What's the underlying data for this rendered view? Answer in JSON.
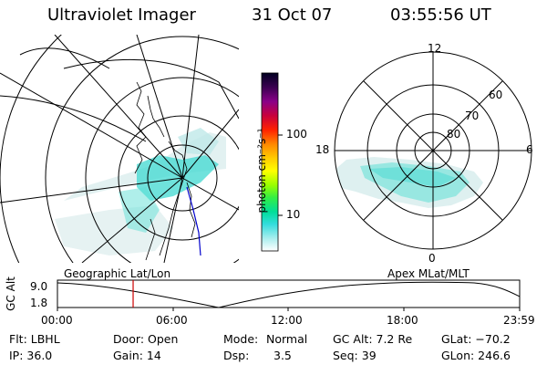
{
  "header": {
    "instrument": "Ultraviolet Imager",
    "date": "31 Oct 07",
    "time": "03:55:56 UT"
  },
  "colorbar": {
    "unit_label": "photon cm⁻²s⁻¹",
    "ticks": [
      {
        "label": "100",
        "value": 100
      },
      {
        "label": "10",
        "value": 10
      }
    ],
    "scale": "log",
    "colors": [
      "#000000",
      "#3a0050",
      "#7a0090",
      "#b0007a",
      "#e00030",
      "#ff3300",
      "#ff8800",
      "#ffbb00",
      "#ffff00",
      "#aaff00",
      "#44ee44",
      "#00dd99",
      "#33dddd",
      "#aaeeee",
      "#ffffff"
    ]
  },
  "polar_plot": {
    "mlt_labels": [
      {
        "label": "12",
        "mlt": 12
      },
      {
        "label": "18",
        "mlt": 18
      },
      {
        "label": "6",
        "mlt": 6
      },
      {
        "label": "0",
        "mlt": 0
      }
    ],
    "lat_labels": [
      {
        "label": "60",
        "lat": 60
      },
      {
        "label": "70",
        "lat": 70
      },
      {
        "label": "80",
        "lat": 80
      }
    ]
  },
  "panel_labels": {
    "left": "Geographic Lat/Lon",
    "right": "Apex MLat/MLT"
  },
  "altitude_plot": {
    "ylabel": "GC Alt",
    "yticks": [
      "9.0",
      "1.8"
    ],
    "ylim": [
      1.8,
      9.0
    ],
    "xticks": [
      "00:00",
      "06:00",
      "12:00",
      "18:00",
      "23:59"
    ],
    "current_time_hours": 3.93,
    "marker_color": "#cc0000"
  },
  "info": {
    "flt": "Flt: LBHL",
    "ip": "IP: 36.0",
    "door": "Door: Open",
    "gain": "Gain: 14",
    "mode_label": "Mode:",
    "mode_value": "Normal",
    "dsp_label": "Dsp:",
    "dsp_value": "3.5",
    "gcalt": "GC Alt: 7.2 Re",
    "seq": "Seq: 39",
    "glat": "GLat: −70.2",
    "glon": "GLon: 246.6"
  },
  "colors": {
    "aurora": "#3fd8d0",
    "aurora_light": "#bfe9e9",
    "track": "#0000cc"
  }
}
